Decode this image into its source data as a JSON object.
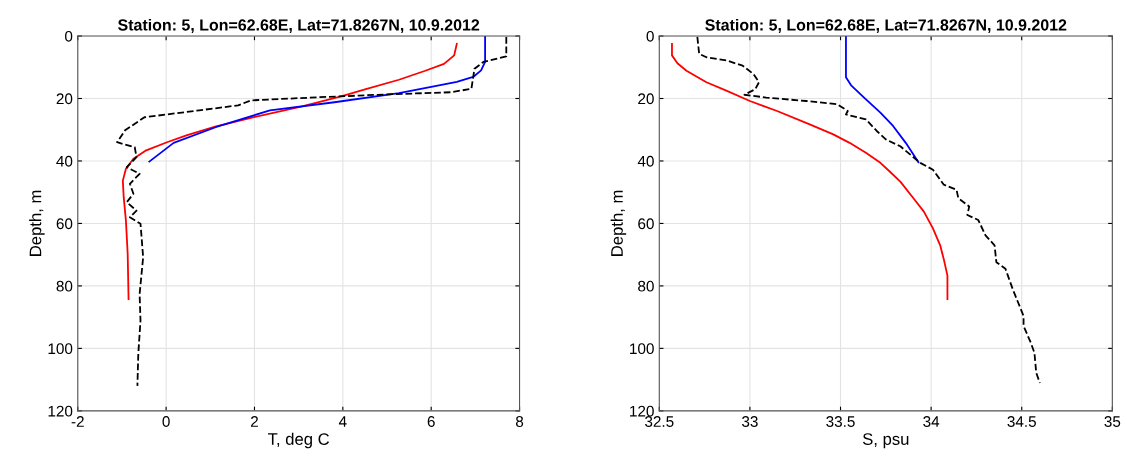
{
  "chart_data": [
    {
      "type": "line",
      "title": "Station: 5, Lon=62.68E, Lat=71.8267N, 10.9.2012",
      "xlabel": "T, deg C",
      "ylabel": "Depth, m",
      "xlim": [
        -2,
        8
      ],
      "xticks": [
        -2,
        0,
        2,
        4,
        6,
        8
      ],
      "ylim": [
        120,
        0
      ],
      "yticks": [
        0,
        20,
        40,
        60,
        80,
        100,
        120
      ],
      "grid": true,
      "series": [
        {
          "color": "#ff0000",
          "line_style": "solid",
          "x": [
            6.58,
            6.52,
            6.29,
            5.85,
            5.27,
            4.54,
            3.96,
            3.08,
            1.99,
            1.11,
            0.46,
            0.02,
            -0.45,
            -0.74,
            -0.91,
            -0.98,
            -0.96,
            -0.91,
            -0.87,
            -0.85
          ],
          "values": [
            2.5,
            6.2,
            8.9,
            11.2,
            14,
            16.9,
            19.3,
            22.5,
            26,
            29,
            31.8,
            34,
            36.6,
            39.3,
            42.5,
            46.3,
            51.6,
            59.1,
            69.8,
            84.2
          ]
        },
        {
          "color": "#0000ff",
          "line_style": "solid",
          "x": [
            7.22,
            7.22,
            7.13,
            6.95,
            6.58,
            6.0,
            5.27,
            3.81,
            2.35,
            1.12,
            0.17,
            -0.38
          ],
          "values": [
            0.3,
            8.3,
            11,
            13.1,
            14.7,
            16.3,
            18.3,
            21.2,
            23.8,
            29.2,
            34.2,
            40.2
          ]
        },
        {
          "color": "#000000",
          "line_style": "dashed",
          "x": [
            7.7,
            7.7,
            7.18,
            6.98,
            6.91,
            6.44,
            4.98,
            3.45,
            1.92,
            1.63,
            0.75,
            -0.49,
            -0.93,
            -1.11,
            -0.71,
            -0.67,
            -0.89,
            -0.6,
            -0.82,
            -0.74,
            -0.89,
            -0.67,
            -0.82,
            -0.58,
            -0.52,
            -0.6,
            -0.58,
            -0.63,
            -0.65
          ],
          "values": [
            0.3,
            6.5,
            8.3,
            10.5,
            16.9,
            18,
            18.7,
            19.6,
            20.6,
            22.2,
            23.8,
            26,
            30.2,
            34,
            35.6,
            38.8,
            42,
            44.1,
            47.3,
            50.5,
            53.2,
            55.9,
            58,
            60.1,
            70.8,
            82.6,
            91.1,
            101.8,
            112
          ]
        }
      ]
    },
    {
      "type": "line",
      "title": "Station: 5, Lon=62.68E, Lat=71.8267N, 10.9.2012",
      "xlabel": "S, psu",
      "ylabel": "Depth, m",
      "xlim": [
        32.5,
        35
      ],
      "xticks": [
        {
          "value": 32.5,
          "label": "32.5"
        },
        {
          "value": 33,
          "label": "33"
        },
        {
          "value": 33.5,
          "label": "33.5"
        },
        {
          "value": 34,
          "label": "34"
        },
        {
          "value": 34.5,
          "label": "34.5"
        },
        {
          "value": 35,
          "label": "35"
        }
      ],
      "ylim": [
        120,
        0
      ],
      "yticks": [
        0,
        20,
        40,
        60,
        80,
        100,
        120
      ],
      "grid": true,
      "series": [
        {
          "color": "#ff0000",
          "line_style": "solid",
          "x": [
            32.57,
            32.57,
            32.6,
            32.65,
            32.76,
            32.87,
            33.0,
            33.15,
            33.33,
            33.46,
            33.55,
            33.64,
            33.72,
            33.77,
            33.83,
            33.91,
            33.96,
            34.01,
            34.05,
            34.07,
            34.09,
            34.09
          ],
          "values": [
            2.5,
            6.2,
            8.7,
            11.1,
            14.8,
            17.5,
            20.8,
            24,
            28.3,
            31.5,
            34.2,
            37.4,
            40.6,
            43.3,
            46.6,
            52.5,
            56.2,
            61.6,
            67,
            71.5,
            76.7,
            84.2
          ]
        },
        {
          "color": "#0000ff",
          "line_style": "solid",
          "x": [
            33.53,
            33.53,
            33.56,
            33.63,
            33.72,
            33.79,
            33.86,
            33.93
          ],
          "values": [
            0.3,
            13.2,
            15.9,
            19.7,
            24.5,
            28.8,
            34.2,
            40.4
          ]
        },
        {
          "color": "#000000",
          "line_style": "dashed",
          "x": [
            32.71,
            32.72,
            32.76,
            32.87,
            32.96,
            33.02,
            33.05,
            33.03,
            32.97,
            33.09,
            33.31,
            33.48,
            33.54,
            33.53,
            33.64,
            33.7,
            33.75,
            33.83,
            33.94,
            34.01,
            34.07,
            34.14,
            34.15,
            34.21,
            34.2,
            34.26,
            34.3,
            34.35,
            34.36,
            34.41,
            34.45,
            34.48,
            34.51,
            34.51,
            34.55,
            34.57,
            34.58,
            34.6
          ],
          "values": [
            0.3,
            5.7,
            6.8,
            7.8,
            9.5,
            12.2,
            14.8,
            17,
            18.8,
            19.7,
            20.8,
            21.8,
            24,
            25.1,
            26.7,
            30.4,
            33.1,
            35.3,
            40.6,
            42.8,
            47.6,
            49.2,
            51.9,
            54.6,
            57.3,
            58.9,
            63.8,
            67,
            72.4,
            74.5,
            81,
            85.3,
            89.6,
            92.8,
            98.2,
            101.4,
            107.8,
            111.1
          ]
        }
      ]
    }
  ]
}
